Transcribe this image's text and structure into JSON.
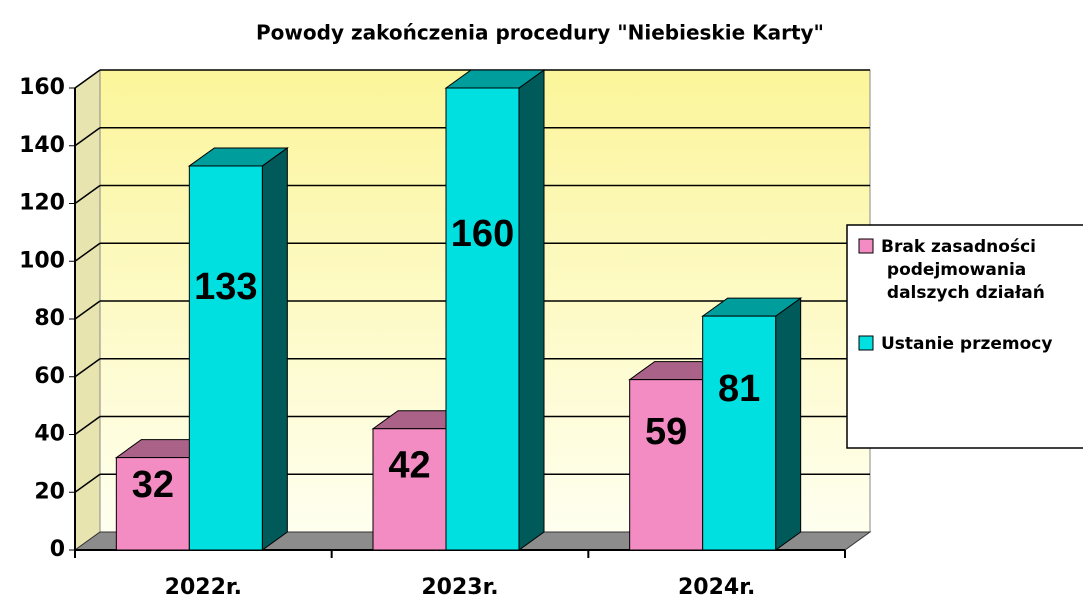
{
  "chart_data": {
    "type": "bar3d",
    "title": "Powody zakończenia procedury \"Niebieskie Karty\"",
    "categories": [
      "2022r.",
      "2023r.",
      "2024r."
    ],
    "series": [
      {
        "name": "Brak zasadności podejmowania dalszych działań",
        "color": "#f48cc4",
        "values": [
          32,
          42,
          59
        ]
      },
      {
        "name": "Ustanie przemocy",
        "color": "#00e0e0",
        "values": [
          133,
          160,
          81
        ]
      }
    ],
    "ylim": [
      0,
      160
    ],
    "yticks": [
      0,
      20,
      40,
      60,
      80,
      100,
      120,
      140,
      160
    ],
    "grid": true,
    "legend": "right"
  }
}
